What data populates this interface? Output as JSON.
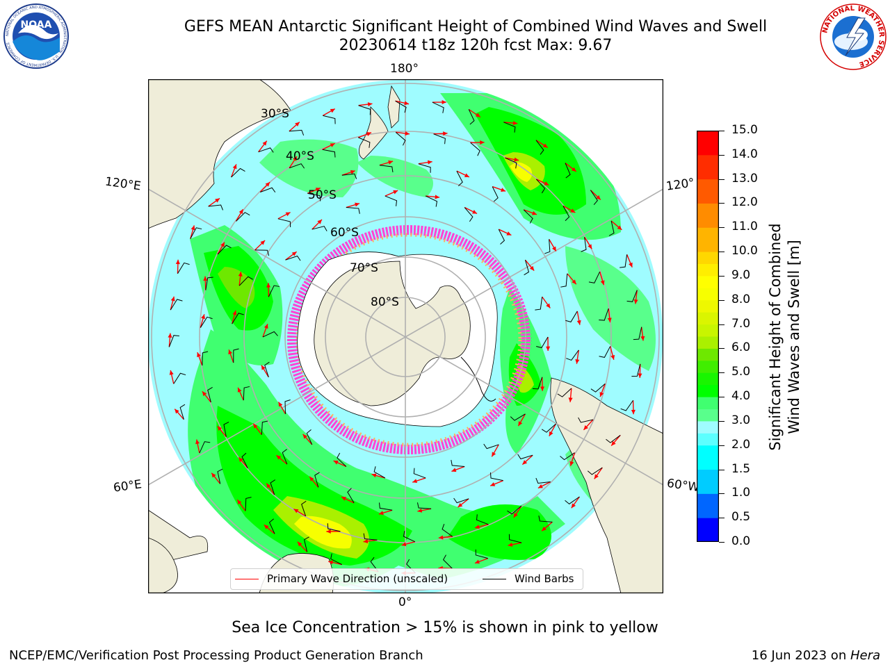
{
  "title": {
    "line1": "GEFS MEAN Antarctic Significant Height of Combined Wind Waves and Swell",
    "line2": "20230614 t18z 120h fcst   Max: 9.67"
  },
  "logos": {
    "left": {
      "name": "noaa-logo",
      "text": "NOAA",
      "ring": "NATIONAL OCEANIC AND ATMOSPHERIC ADMINISTRATION · U.S. DEPARTMENT OF COMMERCE"
    },
    "right": {
      "name": "nws-logo",
      "ring": "NATIONAL WEATHER SERVICE"
    }
  },
  "map": {
    "projection": "south-polar-stereographic",
    "latitude_labels": [
      "30°S",
      "40°S",
      "50°S",
      "60°S",
      "70°S",
      "80°S"
    ],
    "longitude_labels": {
      "top": "180°",
      "upper_left": "120°E",
      "upper_right": "120°",
      "lower_left": "60°E",
      "lower_right": "60°W",
      "bottom": "0°"
    },
    "colors": {
      "land": "#efedd9",
      "ice_shelf": "#ffffff",
      "ocean_default": "#9ffcff",
      "grid": "#b0b0b0",
      "wave_arrow": "#ff0000",
      "wind_barb": "#000000"
    },
    "field": "significant wave height [m]",
    "max_value": 9.67
  },
  "legend": {
    "items": [
      {
        "label": "Primary Wave Direction (unscaled)",
        "color": "#ff0000",
        "icon": "red-line-icon"
      },
      {
        "label": "Wind Barbs",
        "color": "#000000",
        "icon": "black-line-icon"
      }
    ]
  },
  "colorbar": {
    "title_line1": "Significant Height of Combined",
    "title_line2": "Wind Waves and Swell [m]",
    "ticks": [
      "0.0",
      "0.5",
      "1.0",
      "1.5",
      "2.0",
      "3.0",
      "4.0",
      "5.0",
      "6.0",
      "7.0",
      "8.0",
      "9.0",
      "10.0",
      "11.0",
      "12.0",
      "13.0",
      "14.0",
      "15.0"
    ],
    "bins": [
      {
        "from": 0.0,
        "to": 0.5,
        "color": "#0000ff"
      },
      {
        "from": 0.5,
        "to": 1.0,
        "color": "#0066ff"
      },
      {
        "from": 1.0,
        "to": 1.5,
        "color": "#00ccff"
      },
      {
        "from": 1.5,
        "to": 2.0,
        "color": "#00ffff"
      },
      {
        "from": 2.0,
        "to": 2.5,
        "color": "#5cffff"
      },
      {
        "from": 2.5,
        "to": 3.0,
        "color": "#9ffcff"
      },
      {
        "from": 3.0,
        "to": 3.5,
        "color": "#59ff8c"
      },
      {
        "from": 3.5,
        "to": 4.0,
        "color": "#40ff70"
      },
      {
        "from": 4.0,
        "to": 4.5,
        "color": "#00ff00"
      },
      {
        "from": 4.5,
        "to": 5.0,
        "color": "#19f500"
      },
      {
        "from": 5.0,
        "to": 5.5,
        "color": "#40ee00"
      },
      {
        "from": 5.5,
        "to": 6.0,
        "color": "#6ee800"
      },
      {
        "from": 6.0,
        "to": 6.5,
        "color": "#aaf000"
      },
      {
        "from": 6.5,
        "to": 7.0,
        "color": "#c8f500"
      },
      {
        "from": 7.0,
        "to": 7.5,
        "color": "#daf500"
      },
      {
        "from": 7.5,
        "to": 8.0,
        "color": "#eef800"
      },
      {
        "from": 8.0,
        "to": 8.5,
        "color": "#f7ff00"
      },
      {
        "from": 8.5,
        "to": 9.0,
        "color": "#ffff00"
      },
      {
        "from": 9.0,
        "to": 9.5,
        "color": "#ffee00"
      },
      {
        "from": 9.5,
        "to": 10.0,
        "color": "#ffd700"
      },
      {
        "from": 10.0,
        "to": 11.0,
        "color": "#ffb400"
      },
      {
        "from": 11.0,
        "to": 12.0,
        "color": "#ff8c00"
      },
      {
        "from": 12.0,
        "to": 13.0,
        "color": "#ff5a00"
      },
      {
        "from": 13.0,
        "to": 14.0,
        "color": "#ff2d00"
      },
      {
        "from": 14.0,
        "to": 15.0,
        "color": "#ff0000"
      }
    ]
  },
  "notes": {
    "sea_ice": "Sea Ice Concentration > 15% is shown in pink to yellow"
  },
  "footer": {
    "left": "NCEP/EMC/Verification Post Processing Product Generation Branch",
    "right_prefix": "16 Jun 2023 on ",
    "right_machine": "Hera"
  }
}
